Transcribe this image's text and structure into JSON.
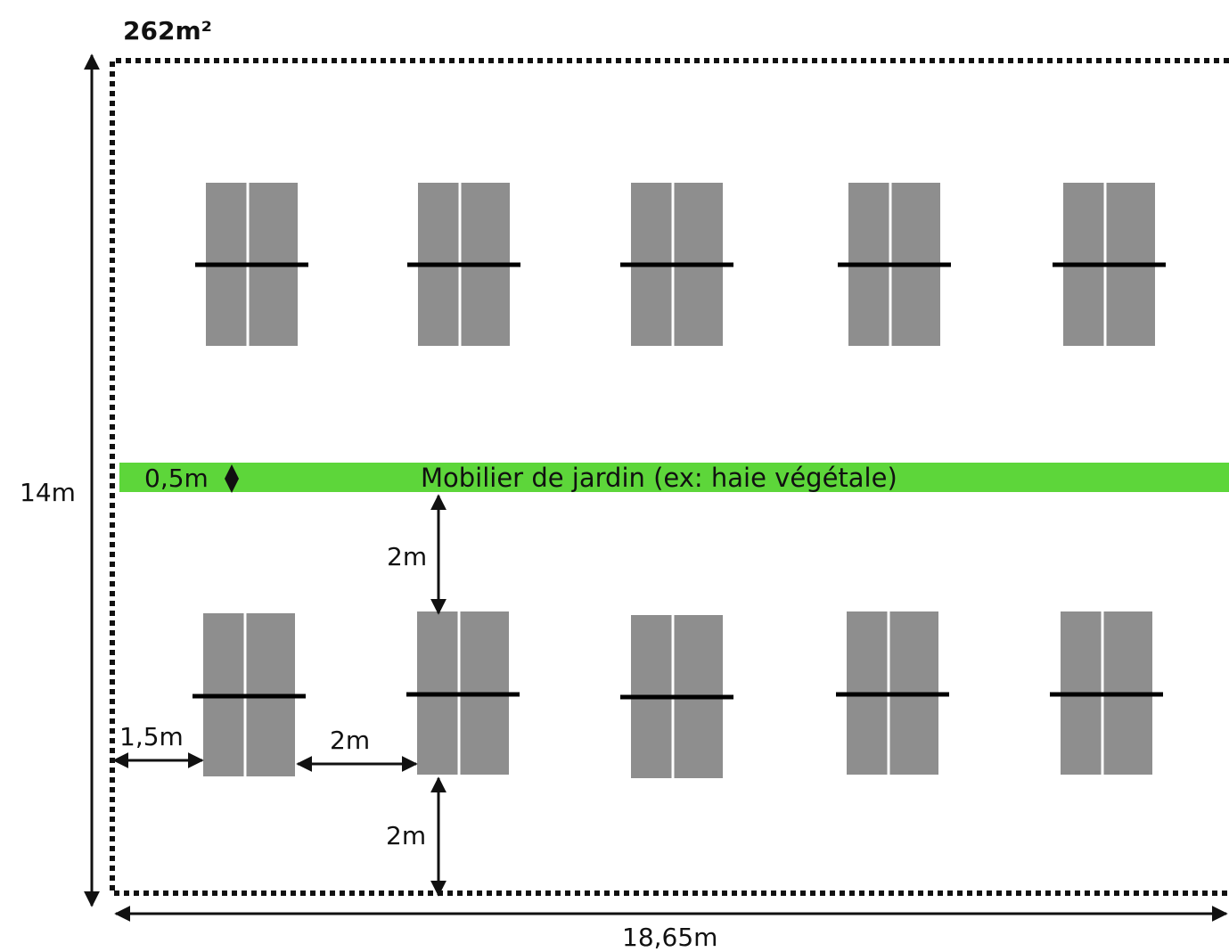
{
  "area_label": "262m²",
  "height_label": "14m",
  "width_label": "18,65m",
  "hedge": {
    "thickness_label": "0,5m",
    "label": "Mobilier de jardin (ex: haie végétale)",
    "color": "#5dd63a"
  },
  "spacing": {
    "side_margin": "1,5m",
    "between_units": "2m",
    "to_hedge": "2m",
    "to_bottom_edge": "2m"
  },
  "rows": [
    {
      "name": "top-row",
      "unit_count": 5
    },
    {
      "name": "bottom-row",
      "unit_count": 5
    }
  ],
  "colors": {
    "unit": "#8e8e8e",
    "border": "#111111"
  }
}
